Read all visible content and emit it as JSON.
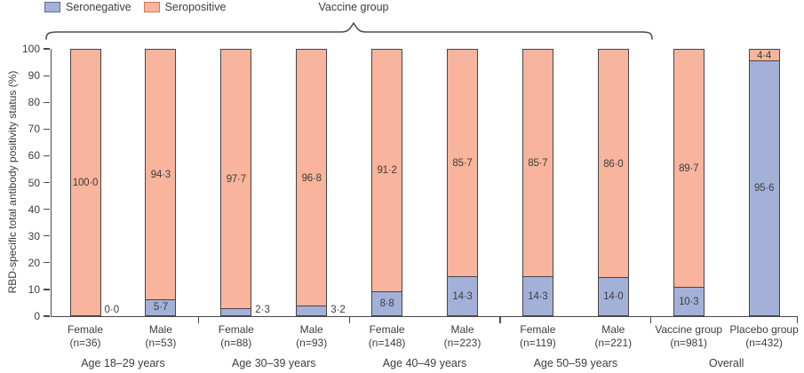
{
  "legend": {
    "items": [
      {
        "label": "Seronegative",
        "color": "#a3b1d8",
        "border": "#5e6f9e"
      },
      {
        "label": "Seropositive",
        "color": "#f8b49c",
        "border": "#c97c58"
      }
    ]
  },
  "bracket": {
    "label": "Vaccine group"
  },
  "colors": {
    "seronegative_fill": "#a3b1d8",
    "seropositive_fill": "#f8b49c",
    "bar_border": "#454545",
    "axis": "#4a4a4a",
    "text": "#3d3d3d"
  },
  "decimal_separator": "·",
  "chart_data": {
    "type": "bar",
    "stacked": true,
    "title": "",
    "ylabel": "RBD-specific total antibody positivity status (%)",
    "xlabel": "",
    "ylim": [
      0,
      100
    ],
    "yticks": [
      0,
      10,
      20,
      30,
      40,
      50,
      60,
      70,
      80,
      90,
      100
    ],
    "legend_position": "top-left",
    "grid": false,
    "series_names": [
      "Seronegative",
      "Seropositive"
    ],
    "bracket_label": "Vaccine group",
    "bracket_covers": [
      "Age 18–29 years",
      "Age 30–39 years",
      "Age 40–49 years",
      "Age 50–59 years"
    ],
    "groups": [
      {
        "label": "Age 18–29 years",
        "bars": [
          {
            "label": "Female",
            "n_label": "(n=36)",
            "seronegative": 0.0,
            "seropositive": 100.0,
            "seroneg_label_outside": true
          },
          {
            "label": "Male",
            "n_label": "(n=53)",
            "seronegative": 5.7,
            "seropositive": 94.3,
            "seroneg_label_outside": false
          }
        ]
      },
      {
        "label": "Age 30–39 years",
        "bars": [
          {
            "label": "Female",
            "n_label": "(n=88)",
            "seronegative": 2.3,
            "seropositive": 97.7,
            "seroneg_label_outside": true
          },
          {
            "label": "Male",
            "n_label": "(n=93)",
            "seronegative": 3.2,
            "seropositive": 96.8,
            "seroneg_label_outside": true
          }
        ]
      },
      {
        "label": "Age 40–49 years",
        "bars": [
          {
            "label": "Female",
            "n_label": "(n=148)",
            "seronegative": 8.8,
            "seropositive": 91.2,
            "seroneg_label_outside": false
          },
          {
            "label": "Male",
            "n_label": "(n=223)",
            "seronegative": 14.3,
            "seropositive": 85.7,
            "seroneg_label_outside": false
          }
        ]
      },
      {
        "label": "Age 50–59 years",
        "bars": [
          {
            "label": "Female",
            "n_label": "(n=119)",
            "seronegative": 14.3,
            "seropositive": 85.7,
            "seroneg_label_outside": false
          },
          {
            "label": "Male",
            "n_label": "(n=221)",
            "seronegative": 14.0,
            "seropositive": 86.0,
            "seroneg_label_outside": false
          }
        ]
      },
      {
        "label": "Overall",
        "bars": [
          {
            "label": "Vaccine group",
            "n_label": "(n=981)",
            "seronegative": 10.3,
            "seropositive": 89.7,
            "seroneg_label_outside": false
          },
          {
            "label": "Placebo group",
            "n_label": "(n=432)",
            "seronegative": 95.6,
            "seropositive": 4.4,
            "seroneg_label_outside": false
          }
        ]
      }
    ]
  }
}
